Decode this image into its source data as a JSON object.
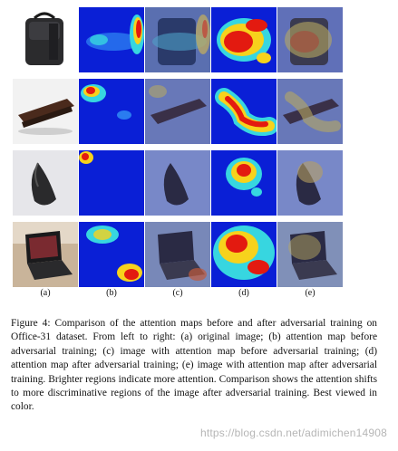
{
  "figure": {
    "column_labels": [
      "(a)",
      "(b)",
      "(c)",
      "(d)",
      "(e)"
    ],
    "row_subjects": [
      "backpack",
      "stapler",
      "computer mouse",
      "laptop"
    ],
    "caption": "Figure 4: Comparison of the attention maps before and after adversarial training on Office-31 dataset. From left to right: (a) original image; (b) attention map before adversarial training; (c) image with attention map before adversarial training; (d) attention map after adversarial training; (e) image with attention map after adversarial training. Brighter regions indicate more attention. Comparison shows the attention shifts to more discriminative regions of the image after adversarial training. Best viewed in color.",
    "watermark": "https://blog.csdn.net/adimichen14908"
  },
  "colors": {
    "heat_background": "#0a1fd6",
    "heat_hot": "#e31a10",
    "heat_warm": "#f7d21c",
    "heat_mid": "#37d6e0"
  }
}
